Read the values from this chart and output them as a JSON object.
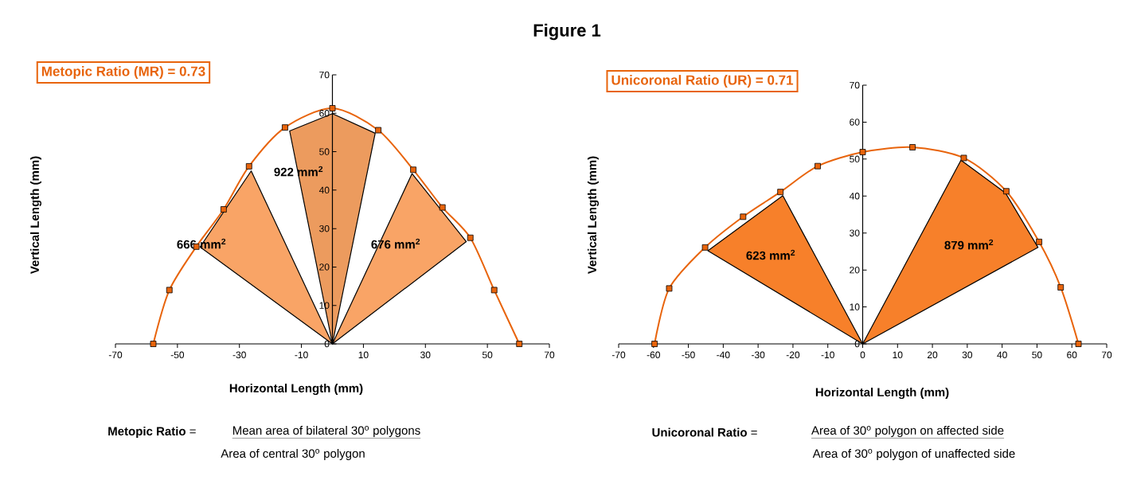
{
  "chart_data": [
    {
      "type": "line",
      "title": "Metopic Ratio (MR) = 0.73",
      "xlabel": "Horizontal Length (mm)",
      "ylabel": "Vertical Length (mm)",
      "xlim": [
        -70,
        70
      ],
      "ylim": [
        0,
        70
      ],
      "xticks": [
        -70,
        -50,
        -30,
        -10,
        10,
        30,
        50,
        70
      ],
      "yticks": [
        0,
        10,
        20,
        30,
        40,
        50,
        60,
        70
      ],
      "series": [
        {
          "marker": "square",
          "color": "#e8640c",
          "x": [
            -57.8,
            -52.6,
            -43.9,
            -35.1,
            -26.9,
            -15.3,
            0,
            14.8,
            26.1,
            35.5,
            44.5,
            52.2,
            60.3
          ],
          "values": [
            0,
            14.0,
            25.3,
            35.0,
            46.2,
            56.3,
            61.3,
            55.6,
            45.3,
            35.5,
            27.6,
            14.0,
            0
          ]
        },
        {
          "type": "area",
          "color": "#f9a466",
          "x": [
            0,
            -42.7,
            -26.2
          ],
          "values": [
            0,
            25.2,
            45.0
          ]
        },
        {
          "type": "area",
          "color": "#ec9b5e",
          "x": [
            0,
            -13.8,
            0,
            13.8
          ],
          "values": [
            0,
            55.4,
            59.9,
            54.8
          ]
        },
        {
          "type": "area",
          "color": "#f9a466",
          "x": [
            0,
            25.7,
            43.2
          ],
          "values": [
            0,
            44.3,
            26.6
          ]
        }
      ],
      "annotations": [
        "666 mm$^{2}$",
        "922 mm$^{2}$",
        "676 mm$^{2}$",
        "Figure 1",
        "**Metopic Ratio** =",
        "Mean area of bilateral 30$^{o}$ polygons",
        "Area of central 30$^{o}$ polygon"
      ]
    },
    {
      "type": "line",
      "title": "Unicoronal Ratio (UR) = 0.71",
      "xlabel": "Horizontal Length (mm)",
      "ylabel": "Vertical Length (mm)",
      "xlim": [
        -70,
        70
      ],
      "ylim": [
        0,
        70
      ],
      "xticks": [
        -70,
        -60,
        -50,
        -40,
        -30,
        -20,
        -10,
        0,
        10,
        20,
        30,
        40,
        50,
        60,
        70
      ],
      "yticks": [
        0,
        10,
        20,
        30,
        40,
        50,
        60,
        70
      ],
      "series": [
        {
          "marker": "square",
          "color": "#e8640c",
          "x": [
            -59.7,
            -55.5,
            -45.2,
            -34.3,
            -23.6,
            -12.9,
            0,
            14.3,
            29.0,
            41.2,
            50.6,
            56.8,
            61.9
          ],
          "values": [
            0,
            15.0,
            26.1,
            34.4,
            41.1,
            48.1,
            51.9,
            53.2,
            50.3,
            41.3,
            27.6,
            15.3,
            0
          ]
        },
        {
          "type": "area",
          "color": "#f7802a",
          "x": [
            0,
            -44.4,
            -22.9
          ],
          "values": [
            0,
            25.2,
            40.1
          ]
        },
        {
          "type": "area",
          "color": "#f7802a",
          "x": [
            0,
            28.2,
            41.0,
            50.3
          ],
          "values": [
            0,
            49.7,
            40.8,
            26.1
          ]
        }
      ],
      "annotations": [
        "623 mm$^{2}$",
        "879 mm$^{2}$",
        "**Unicoronal Ratio** =",
        "Area of 30$^{o}$ polygon on affected side",
        "Area of 30$^{o}$ polygon of unaffected side"
      ]
    }
  ]
}
